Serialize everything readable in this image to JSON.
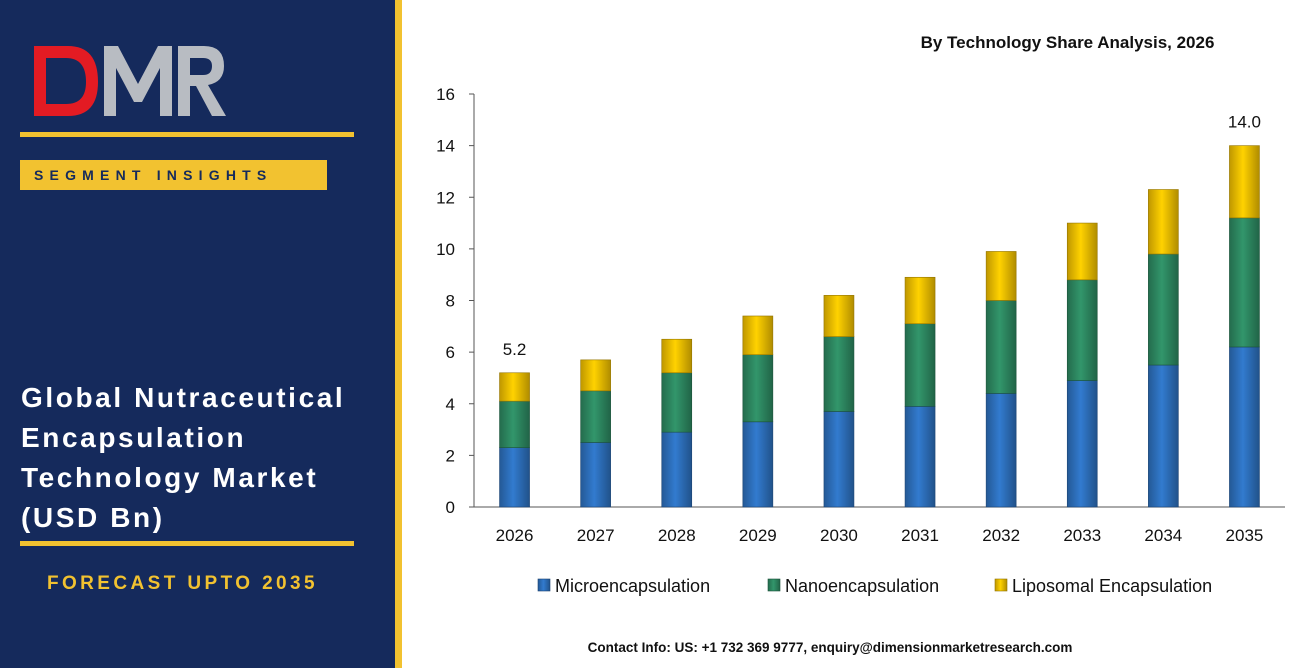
{
  "brand": {
    "logo_text": "DMR",
    "logo_colors": [
      "#e31b23",
      "#b8bcc2"
    ]
  },
  "left_panel": {
    "segment_label": "SEGMENT INSIGHTS",
    "title_lines": [
      "Global Nutraceutical",
      "Encapsulation",
      "Technology Market",
      "(USD Bn)"
    ],
    "forecast": "FORECAST UPTO 2035"
  },
  "contact": "Contact Info: US: +1 732 369 9777, enquiry@dimensionmarketresearch.com",
  "colors": {
    "panel_bg": "#152a5c",
    "accent": "#f2c230"
  },
  "chart_data": {
    "type": "bar",
    "stacked": true,
    "title": "By Technology Share Analysis, 2026",
    "xlabel": "",
    "ylabel": "",
    "ylim": [
      0,
      16
    ],
    "yticks": [
      0,
      2,
      4,
      6,
      8,
      10,
      12,
      14,
      16
    ],
    "grid": false,
    "legend_position": "bottom",
    "categories": [
      "2026",
      "2027",
      "2028",
      "2029",
      "2030",
      "2031",
      "2032",
      "2033",
      "2034",
      "2035"
    ],
    "series": [
      {
        "name": "Microencapsulation",
        "color": "#2e72c0",
        "values": [
          2.3,
          2.5,
          2.9,
          3.3,
          3.7,
          3.9,
          4.4,
          4.9,
          5.5,
          6.2
        ]
      },
      {
        "name": "Nanoencapsulation",
        "color": "#2e8b63",
        "values": [
          1.8,
          2.0,
          2.3,
          2.6,
          2.9,
          3.2,
          3.6,
          3.9,
          4.3,
          5.0
        ]
      },
      {
        "name": "Liposomal Encapsulation",
        "color": "#f5c200",
        "values": [
          1.1,
          1.2,
          1.3,
          1.5,
          1.6,
          1.8,
          1.9,
          2.2,
          2.5,
          2.8
        ]
      }
    ],
    "data_labels": [
      {
        "category": "2026",
        "text": "5.2"
      },
      {
        "category": "2035",
        "text": "14.0"
      }
    ]
  }
}
